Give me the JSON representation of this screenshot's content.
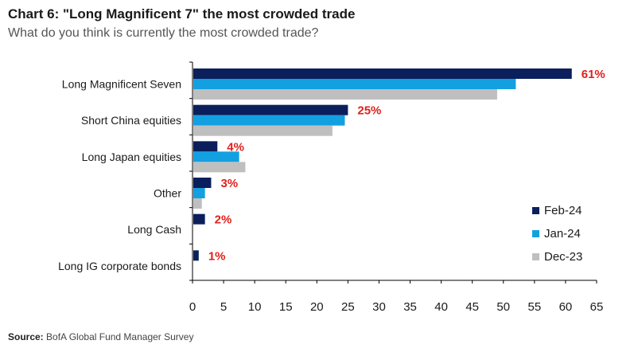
{
  "header": {
    "title": "Chart 6: \"Long Magnificent 7\" the most crowded trade",
    "subtitle": "What do you think is currently the most crowded trade?"
  },
  "footer": {
    "source_label": "Source:",
    "source_text": "BofA Global Fund Manager Survey"
  },
  "colors": {
    "feb": "#0b1f5c",
    "jan": "#13a0e0",
    "dec": "#bfbfbf",
    "label": "#e0201b"
  },
  "chart_data": {
    "type": "bar",
    "orientation": "horizontal",
    "categories": [
      "Long Magnificent Seven",
      "Short China equities",
      "Long Japan equities",
      "Other",
      "Long Cash",
      "Long IG corporate bonds"
    ],
    "series": [
      {
        "name": "Feb-24",
        "color": "#0b1f5c",
        "values": [
          61,
          25,
          4,
          3,
          2,
          1
        ]
      },
      {
        "name": "Jan-24",
        "color": "#13a0e0",
        "values": [
          52,
          24.5,
          7.5,
          2,
          0,
          0
        ]
      },
      {
        "name": "Dec-23",
        "color": "#bfbfbf",
        "values": [
          49,
          22.5,
          8.5,
          1.5,
          0,
          0
        ]
      }
    ],
    "data_labels": [
      "61%",
      "25%",
      "4%",
      "3%",
      "2%",
      "1%"
    ],
    "xlim": [
      0,
      65
    ],
    "xticks": [
      "0",
      "5",
      "10",
      "15",
      "20",
      "25",
      "30",
      "35",
      "40",
      "45",
      "50",
      "55",
      "60",
      "65"
    ],
    "grid": false,
    "legend_position": "right"
  }
}
